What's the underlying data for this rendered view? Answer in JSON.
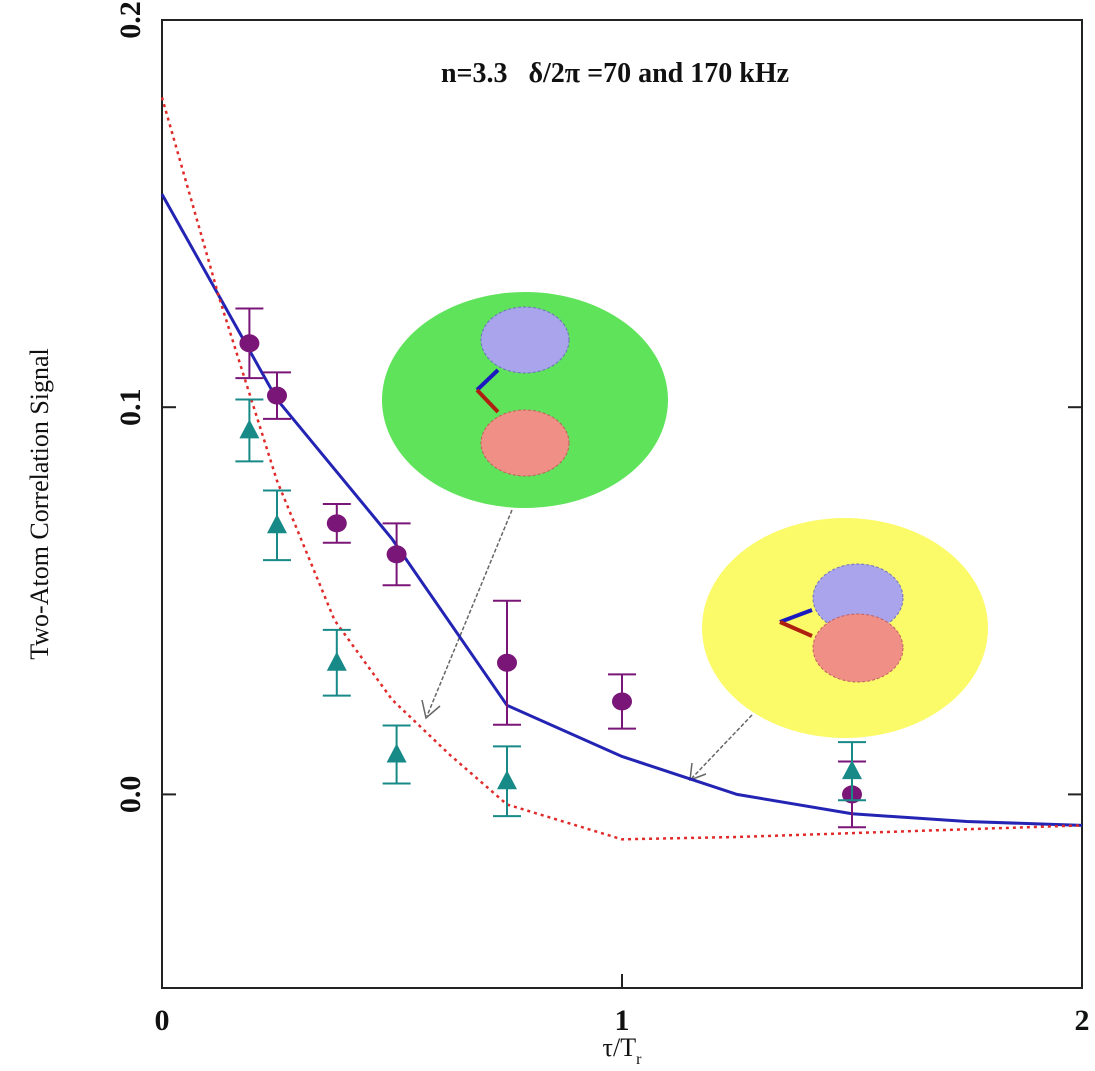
{
  "chart_data": {
    "type": "scatter",
    "annotation": "n=3.3   δ/2π =70 and 170 kHz",
    "y_label": "Two-Atom Correlation Signal",
    "x_label": "τ/T",
    "x_label_subscript": "r",
    "xlim": [
      0,
      2
    ],
    "ylim": [
      -0.05,
      0.2
    ],
    "xticks": [
      0,
      1,
      2
    ],
    "yticks": [
      {
        "value": 0,
        "label": "0.0"
      },
      0.1,
      0.2
    ],
    "series": [
      {
        "mode": "markers",
        "marker": "circle",
        "color": "#7a1677",
        "x": [
          0.19,
          0.25,
          0.38,
          0.51,
          0.75,
          1.0,
          1.5
        ],
        "values": [
          0.1165,
          0.103,
          0.07,
          0.062,
          0.034,
          0.024,
          0.0
        ],
        "errors": [
          0.009,
          0.006,
          0.005,
          0.008,
          0.016,
          0.007,
          0.0085
        ]
      },
      {
        "mode": "markers",
        "marker": "triangle",
        "color": "#178a88",
        "x": [
          0.19,
          0.25,
          0.38,
          0.51,
          0.75,
          1.5
        ],
        "values": [
          0.094,
          0.0695,
          0.034,
          0.0103,
          0.0034,
          0.006
        ],
        "errors": [
          0.008,
          0.009,
          0.0085,
          0.0075,
          0.009,
          0.0075
        ]
      },
      {
        "mode": "line",
        "dash": "solid",
        "color": "#2424b4",
        "x": [
          0,
          0.25,
          0.5,
          0.75,
          1.0,
          1.25,
          1.5,
          1.75,
          2
        ],
        "values": [
          0.155,
          0.102,
          0.066,
          0.023,
          0.0098,
          0.0,
          -0.005,
          -0.007,
          -0.008
        ]
      },
      {
        "mode": "line",
        "dash": "dotted",
        "color": "#e02a2a",
        "x": [
          0,
          0.125,
          0.25,
          0.375,
          0.5,
          0.625,
          0.75,
          1.0,
          1.25,
          1.5,
          1.75,
          2
        ],
        "values": [
          0.18,
          0.128,
          0.081,
          0.045,
          0.0245,
          0.0103,
          -0.0026,
          -0.0116,
          -0.011,
          -0.01,
          -0.009,
          -0.008
        ]
      }
    ]
  }
}
